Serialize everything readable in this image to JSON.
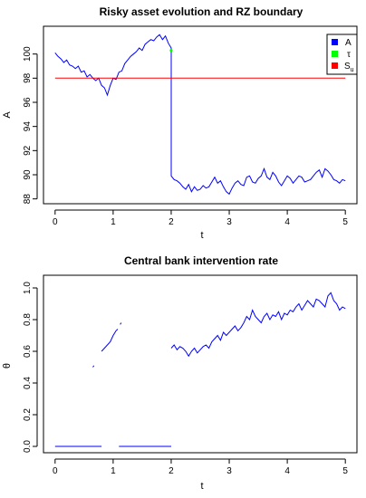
{
  "chart_data": [
    {
      "type": "line",
      "title": "Risky asset evolution and RZ boundary",
      "xlabel": "t",
      "ylabel": "A",
      "xlim": [
        0,
        5
      ],
      "ylim": [
        88,
        102
      ],
      "xticks": [
        "0",
        "1",
        "2",
        "3",
        "4",
        "5"
      ],
      "yticks": [
        "88",
        "90",
        "92",
        "94",
        "96",
        "98",
        "100"
      ],
      "legend_position": "top-right",
      "legend": [
        {
          "label": "A",
          "color": "#0000ff"
        },
        {
          "label": "τ",
          "color": "#00ff00"
        },
        {
          "label": "S",
          "sub": "u",
          "color": "#ff0000"
        }
      ],
      "series": [
        {
          "name": "A",
          "color": "#0000ff",
          "x": [
            0.0,
            0.05,
            0.1,
            0.15,
            0.2,
            0.25,
            0.3,
            0.35,
            0.4,
            0.45,
            0.5,
            0.55,
            0.6,
            0.65,
            0.7,
            0.75,
            0.8,
            0.85,
            0.9,
            0.95,
            1.0,
            1.05,
            1.1,
            1.15,
            1.2,
            1.25,
            1.3,
            1.35,
            1.4,
            1.45,
            1.5,
            1.55,
            1.6,
            1.65,
            1.7,
            1.75,
            1.8,
            1.85,
            1.9,
            1.95,
            2.0,
            2.0,
            2.05,
            2.1,
            2.15,
            2.2,
            2.25,
            2.3,
            2.35,
            2.4,
            2.45,
            2.5,
            2.55,
            2.6,
            2.65,
            2.7,
            2.75,
            2.8,
            2.85,
            2.9,
            2.95,
            3.0,
            3.05,
            3.1,
            3.15,
            3.2,
            3.25,
            3.3,
            3.35,
            3.4,
            3.45,
            3.5,
            3.55,
            3.6,
            3.65,
            3.7,
            3.75,
            3.8,
            3.85,
            3.9,
            3.95,
            4.0,
            4.05,
            4.1,
            4.15,
            4.2,
            4.25,
            4.3,
            4.35,
            4.4,
            4.45,
            4.5,
            4.55,
            4.6,
            4.65,
            4.7,
            4.75,
            4.8,
            4.85,
            4.9,
            4.95,
            5.0
          ],
          "y": [
            100.1,
            99.8,
            99.6,
            99.3,
            99.5,
            99.1,
            99.0,
            98.8,
            99.0,
            98.5,
            98.6,
            98.1,
            98.3,
            98.0,
            97.8,
            98.0,
            97.4,
            97.2,
            96.6,
            97.4,
            98.0,
            97.9,
            98.5,
            98.6,
            99.2,
            99.5,
            99.8,
            100.0,
            100.2,
            100.5,
            100.3,
            100.8,
            101.0,
            101.2,
            101.1,
            101.4,
            101.6,
            101.2,
            101.5,
            100.9,
            100.5,
            89.9,
            89.6,
            89.5,
            89.3,
            89.0,
            88.8,
            89.2,
            88.6,
            89.0,
            88.7,
            88.8,
            89.1,
            88.9,
            89.0,
            89.4,
            89.8,
            89.3,
            89.5,
            89.0,
            88.6,
            88.4,
            88.9,
            89.3,
            89.5,
            89.2,
            89.1,
            89.8,
            89.9,
            89.4,
            89.3,
            89.7,
            89.9,
            90.5,
            89.8,
            89.6,
            90.2,
            89.9,
            89.4,
            89.1,
            89.5,
            89.9,
            89.7,
            89.3,
            89.6,
            89.9,
            89.8,
            89.4,
            89.5,
            89.6,
            89.9,
            90.2,
            90.4,
            89.8,
            90.5,
            90.3,
            90.0,
            89.6,
            89.5,
            89.3,
            89.6,
            89.5
          ]
        },
        {
          "name": "Su",
          "color": "#ff0000",
          "x": [
            0,
            5
          ],
          "y": [
            98,
            98
          ]
        }
      ],
      "tau_marker": {
        "x": 2.0,
        "y": 100.3,
        "color": "#00ff00"
      }
    },
    {
      "type": "line",
      "title": "Central bank intervention rate",
      "xlabel": "t",
      "ylabel": "θ",
      "xlim": [
        0,
        5
      ],
      "ylim": [
        0,
        1.05
      ],
      "xticks": [
        "0",
        "1",
        "2",
        "3",
        "4",
        "5"
      ],
      "yticks": [
        "0.0",
        "0.2",
        "0.4",
        "0.6",
        "0.8",
        "1.0"
      ],
      "series": [
        {
          "name": "θ",
          "color": "#0000ff",
          "segments": [
            {
              "x": [
                0.0,
                0.8
              ],
              "y": [
                0.0,
                0.0
              ]
            },
            {
              "x": [
                0.65,
                0.67
              ],
              "y": [
                0.5,
                0.51
              ]
            },
            {
              "x": [
                0.8,
                0.85,
                0.9,
                0.95,
                1.0,
                1.05,
                1.08
              ],
              "y": [
                0.6,
                0.62,
                0.64,
                0.66,
                0.7,
                0.73,
                0.74
              ]
            },
            {
              "x": [
                1.12,
                1.14
              ],
              "y": [
                0.77,
                0.78
              ]
            },
            {
              "x": [
                1.1,
                2.0
              ],
              "y": [
                0.0,
                0.0
              ]
            },
            {
              "x": [
                2.0,
                2.05,
                2.1,
                2.15,
                2.2,
                2.25,
                2.3,
                2.35,
                2.4,
                2.45,
                2.5,
                2.55,
                2.6,
                2.65,
                2.7,
                2.75,
                2.8,
                2.85,
                2.9,
                2.95,
                3.0,
                3.05,
                3.1,
                3.15,
                3.2,
                3.25,
                3.3,
                3.35,
                3.4,
                3.45,
                3.5,
                3.55,
                3.6,
                3.65,
                3.7,
                3.75,
                3.8,
                3.85,
                3.9,
                3.95,
                4.0,
                4.05,
                4.1,
                4.15,
                4.2,
                4.25,
                4.3,
                4.35,
                4.4,
                4.45,
                4.5,
                4.55,
                4.6,
                4.65,
                4.7,
                4.75,
                4.8,
                4.85,
                4.9,
                4.95,
                5.0
              ],
              "y": [
                0.62,
                0.64,
                0.61,
                0.63,
                0.62,
                0.6,
                0.57,
                0.6,
                0.62,
                0.59,
                0.61,
                0.63,
                0.64,
                0.62,
                0.66,
                0.68,
                0.7,
                0.67,
                0.72,
                0.7,
                0.72,
                0.74,
                0.76,
                0.73,
                0.75,
                0.78,
                0.82,
                0.8,
                0.86,
                0.82,
                0.8,
                0.78,
                0.82,
                0.84,
                0.8,
                0.83,
                0.82,
                0.85,
                0.8,
                0.84,
                0.83,
                0.86,
                0.85,
                0.88,
                0.9,
                0.86,
                0.89,
                0.92,
                0.9,
                0.88,
                0.93,
                0.92,
                0.9,
                0.88,
                0.95,
                0.97,
                0.92,
                0.9,
                0.86,
                0.88,
                0.87
              ]
            }
          ]
        }
      ]
    }
  ]
}
